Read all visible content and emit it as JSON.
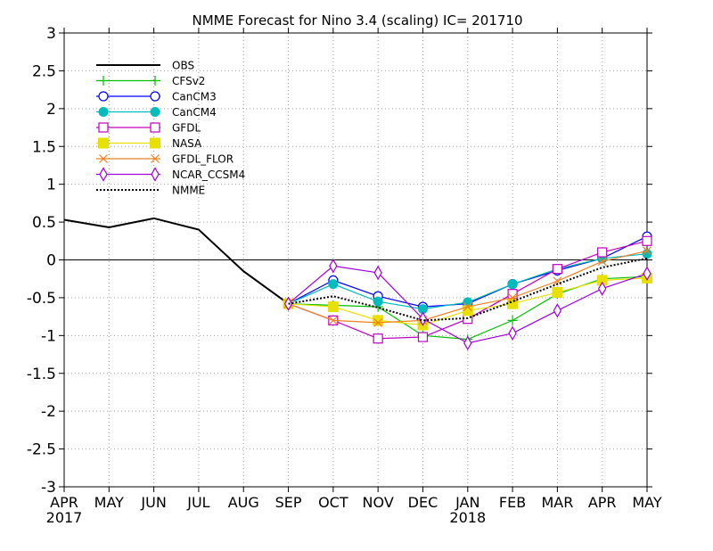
{
  "chart_data": {
    "type": "line",
    "title": "NMME Forecast for Nino 3.4 (scaling) IC= 201710",
    "xlabel": "",
    "ylabel": "",
    "x_tick_labels": [
      "APR",
      "MAY",
      "JUN",
      "JUL",
      "AUG",
      "SEP",
      "OCT",
      "NOV",
      "DEC",
      "JAN",
      "FEB",
      "MAR",
      "APR",
      "MAY"
    ],
    "x_year_labels": [
      {
        "index": 0,
        "label": "2017"
      },
      {
        "index": 9,
        "label": "2018"
      }
    ],
    "y_ticks": [
      "3",
      "2.5",
      "2",
      "1.5",
      "1",
      "0.5",
      "0",
      "-0.5",
      "-1",
      "-1.5",
      "-2",
      "-2.5",
      "-3"
    ],
    "ylim": [
      -3,
      3
    ],
    "grid": true,
    "legend_position": "top-left",
    "zero_line": 0,
    "series": [
      {
        "name": "OBS",
        "color": "#000000",
        "marker": "none",
        "dash": "solid",
        "start": 0,
        "values": [
          0.53,
          0.43,
          0.55,
          0.4,
          -0.15,
          -0.58
        ]
      },
      {
        "name": "CFSv2",
        "color": "#00c000",
        "marker": "plus",
        "dash": "solid",
        "start": 5,
        "values": [
          -0.58,
          -0.6,
          -0.62,
          -1.0,
          -1.05,
          -0.8,
          -0.45,
          -0.25,
          -0.22
        ]
      },
      {
        "name": "CanCM3",
        "color": "#0000ff",
        "marker": "circle",
        "dash": "solid",
        "start": 5,
        "values": [
          -0.58,
          -0.27,
          -0.48,
          -0.62,
          -0.58,
          -0.32,
          -0.14,
          0.02,
          0.31
        ]
      },
      {
        "name": "CanCM4",
        "color": "#00bcbc",
        "marker": "filled-circle",
        "dash": "solid",
        "start": 5,
        "values": [
          -0.58,
          -0.32,
          -0.55,
          -0.65,
          -0.56,
          -0.32,
          -0.12,
          0.02,
          0.08
        ]
      },
      {
        "name": "GFDL",
        "color": "#c000c0",
        "marker": "square",
        "dash": "solid",
        "start": 5,
        "values": [
          -0.58,
          -0.8,
          -1.04,
          -1.02,
          -0.78,
          -0.45,
          -0.12,
          0.1,
          0.25
        ]
      },
      {
        "name": "NASA",
        "color": "#e8e000",
        "marker": "filled-square",
        "dash": "solid",
        "start": 5,
        "values": [
          -0.58,
          -0.62,
          -0.8,
          -0.86,
          -0.67,
          -0.58,
          -0.43,
          -0.27,
          -0.24
        ]
      },
      {
        "name": "GFDL_FLOR",
        "color": "#f08020",
        "marker": "x",
        "dash": "solid",
        "start": 5,
        "values": [
          -0.58,
          -0.8,
          -0.83,
          -0.8,
          -0.62,
          -0.5,
          -0.28,
          -0.02,
          0.12
        ]
      },
      {
        "name": "NCAR_CCSM4",
        "color": "#a000e0",
        "marker": "diamond",
        "dash": "solid",
        "start": 5,
        "values": [
          -0.58,
          -0.08,
          -0.17,
          -0.78,
          -1.1,
          -0.97,
          -0.67,
          -0.38,
          -0.18
        ]
      },
      {
        "name": "NMME",
        "color": "#000000",
        "marker": "none",
        "dash": "dotted",
        "start": 5,
        "values": [
          -0.58,
          -0.48,
          -0.63,
          -0.8,
          -0.77,
          -0.55,
          -0.32,
          -0.1,
          0.02
        ]
      }
    ]
  }
}
